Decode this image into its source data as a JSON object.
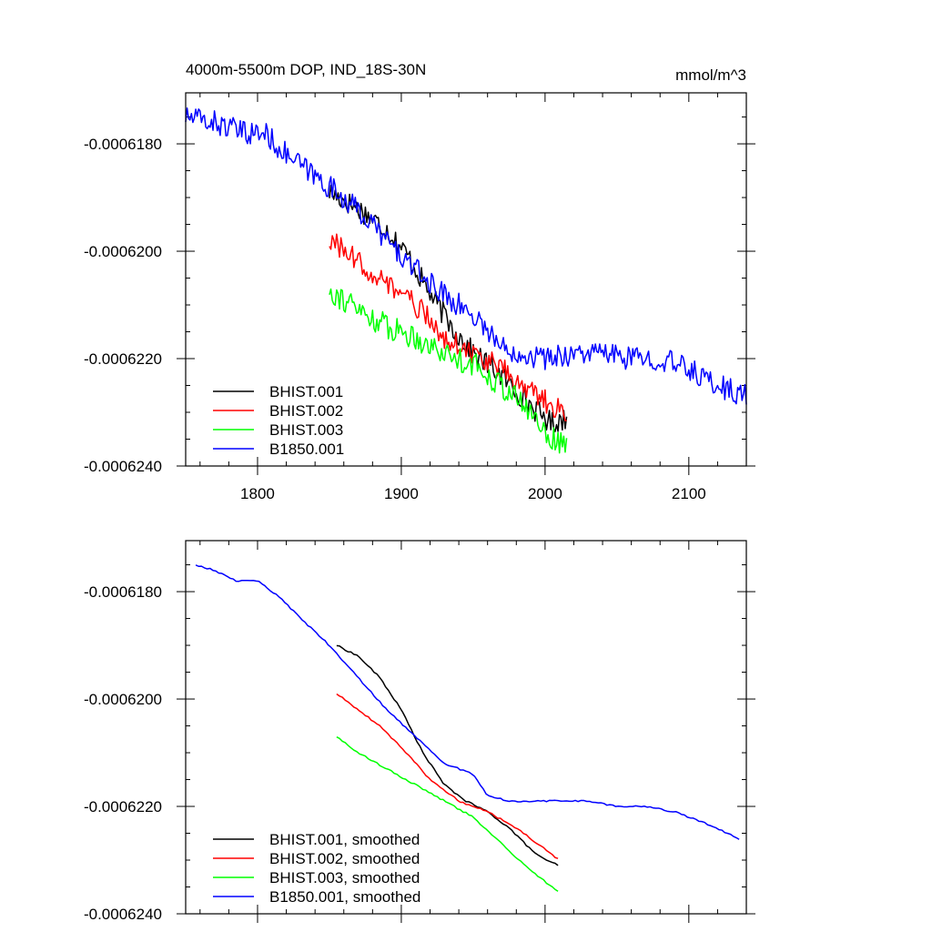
{
  "chart_data": [
    {
      "type": "line",
      "title": "4000m-5500m DOP, IND_18S-30N",
      "units": "mmol/m^3",
      "xlim": [
        1750,
        2140
      ],
      "ylim": [
        -0.000624,
        -0.00061705
      ],
      "xticks": [
        1800,
        1900,
        2000,
        2100
      ],
      "xtick_labels": [
        "1800",
        "1900",
        "2000",
        "2100"
      ],
      "yticks": [
        -0.000618,
        -0.00062,
        -0.000622,
        -0.000624
      ],
      "ytick_labels": [
        "-0.0006180",
        "-0.0006200",
        "-0.0006220",
        "-0.0006240"
      ],
      "show_xtick_labels": true,
      "legend_placement": "bottom-left",
      "series": [
        {
          "name": "BHIST.001",
          "color": "#000000",
          "noise": 2.2e-07,
          "x": [
            1850,
            1870,
            1890,
            1905,
            1920,
            1935,
            1950,
            1965,
            1980,
            1995,
            2005,
            2015
          ],
          "y": [
            -0.0006189,
            -0.0006192,
            -0.0006196,
            -0.0006201,
            -0.0006208,
            -0.0006214,
            -0.0006219,
            -0.0006222,
            -0.0006226,
            -0.000623,
            -0.0006232,
            -0.0006231
          ]
        },
        {
          "name": "BHIST.002",
          "color": "#ff0000",
          "noise": 2.2e-07,
          "x": [
            1850,
            1870,
            1890,
            1910,
            1930,
            1950,
            1970,
            1990,
            2005,
            2015
          ],
          "y": [
            -0.0006198,
            -0.0006202,
            -0.0006206,
            -0.000621,
            -0.0006216,
            -0.0006219,
            -0.0006222,
            -0.0006226,
            -0.0006229,
            -0.000623
          ]
        },
        {
          "name": "BHIST.003",
          "color": "#00ff00",
          "noise": 2.4e-07,
          "x": [
            1850,
            1870,
            1890,
            1910,
            1930,
            1950,
            1970,
            1990,
            2005,
            2015
          ],
          "y": [
            -0.0006207,
            -0.0006211,
            -0.0006214,
            -0.0006216,
            -0.0006219,
            -0.0006221,
            -0.0006225,
            -0.000623,
            -0.0006235,
            -0.0006236
          ]
        },
        {
          "name": "B1850.001",
          "color": "#0000ff",
          "noise": 2.2e-07,
          "x": [
            1750,
            1770,
            1790,
            1805,
            1820,
            1840,
            1860,
            1880,
            1900,
            1920,
            1940,
            1955,
            1970,
            1985,
            2000,
            2020,
            2040,
            2060,
            2080,
            2100,
            2120,
            2140
          ],
          "y": [
            -0.0006175,
            -0.0006176,
            -0.0006178,
            -0.0006178,
            -0.0006182,
            -0.0006186,
            -0.000619,
            -0.0006195,
            -0.0006201,
            -0.0006206,
            -0.000621,
            -0.0006213,
            -0.0006218,
            -0.0006219,
            -0.000622,
            -0.0006219,
            -0.0006219,
            -0.000622,
            -0.000622,
            -0.0006222,
            -0.0006225,
            -0.0006227
          ]
        }
      ]
    },
    {
      "type": "line",
      "title": "",
      "units": "",
      "xlim": [
        1750,
        2140
      ],
      "ylim": [
        -0.000624,
        -0.00061705
      ],
      "xticks": [
        1800,
        1900,
        2000,
        2100
      ],
      "xtick_labels": [
        "",
        "",
        "",
        ""
      ],
      "yticks": [
        -0.000618,
        -0.00062,
        -0.000622,
        -0.000624
      ],
      "ytick_labels": [
        "-0.0006180",
        "-0.0006200",
        "-0.0006220",
        "-0.0006240"
      ],
      "show_xtick_labels": false,
      "legend_placement": "bottom-left",
      "series": [
        {
          "name": "BHIST.001, smoothed",
          "color": "#000000",
          "noise": 1.5e-08,
          "x": [
            1855,
            1870,
            1885,
            1900,
            1915,
            1930,
            1945,
            1960,
            1975,
            1990,
            2000,
            2010
          ],
          "y": [
            -0.000619,
            -0.0006192,
            -0.0006196,
            -0.0006202,
            -0.000621,
            -0.0006216,
            -0.0006219,
            -0.0006221,
            -0.0006224,
            -0.0006228,
            -0.000623,
            -0.0006231
          ]
        },
        {
          "name": "BHIST.002, smoothed",
          "color": "#ff0000",
          "noise": 1.5e-08,
          "x": [
            1855,
            1870,
            1885,
            1900,
            1920,
            1940,
            1960,
            1980,
            2000,
            2010
          ],
          "y": [
            -0.0006199,
            -0.0006202,
            -0.0006205,
            -0.0006209,
            -0.0006215,
            -0.0006219,
            -0.0006221,
            -0.0006224,
            -0.0006228,
            -0.000623
          ]
        },
        {
          "name": "BHIST.003, smoothed",
          "color": "#00ff00",
          "noise": 1.5e-08,
          "x": [
            1855,
            1870,
            1890,
            1910,
            1930,
            1950,
            1970,
            1990,
            2010
          ],
          "y": [
            -0.0006207,
            -0.000621,
            -0.0006213,
            -0.0006216,
            -0.0006219,
            -0.0006222,
            -0.0006227,
            -0.0006232,
            -0.0006236
          ]
        },
        {
          "name": "B1850.001, smoothed",
          "color": "#0000ff",
          "noise": 1.5e-08,
          "x": [
            1757,
            1770,
            1785,
            1800,
            1815,
            1830,
            1850,
            1870,
            1890,
            1910,
            1930,
            1950,
            1960,
            1975,
            1990,
            2010,
            2030,
            2050,
            2070,
            2090,
            2110,
            2135
          ],
          "y": [
            -0.0006175,
            -0.0006176,
            -0.0006178,
            -0.0006178,
            -0.0006181,
            -0.0006185,
            -0.000619,
            -0.0006196,
            -0.0006202,
            -0.0006207,
            -0.0006212,
            -0.0006214,
            -0.0006218,
            -0.0006219,
            -0.0006219,
            -0.0006219,
            -0.0006219,
            -0.000622,
            -0.000622,
            -0.0006221,
            -0.0006223,
            -0.0006226
          ]
        }
      ]
    }
  ]
}
